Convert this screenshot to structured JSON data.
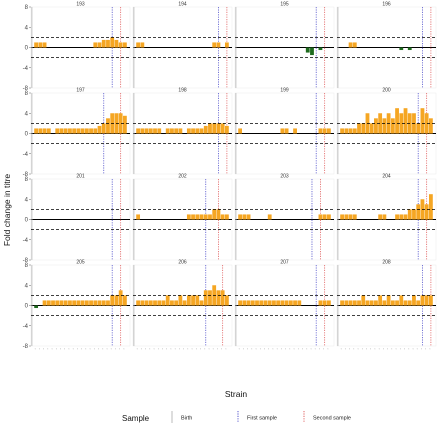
{
  "chart_data": {
    "type": "bar",
    "xlabel": "Strain",
    "ylabel": "Fold change in titre",
    "ylim": [
      -8,
      8
    ],
    "yticks": [
      -8,
      -4,
      0,
      4,
      8
    ],
    "threshold_lines": [
      2,
      -2
    ],
    "colors": {
      "increase": "#F5A623",
      "decrease": "#1E6B1E",
      "birth": "#BBBBBB",
      "first_sample": "#5555CC",
      "second_sample": "#E06060"
    },
    "legend": {
      "title": "Sample",
      "items": [
        {
          "key": "birth",
          "label": "Birth"
        },
        {
          "key": "first_sample",
          "label": "First sample"
        },
        {
          "key": "second_sample",
          "label": "Second sample"
        }
      ]
    },
    "strain_count": 22,
    "panels": [
      {
        "id": "193",
        "values": [
          1,
          1,
          1,
          0,
          0,
          0,
          0,
          0,
          0,
          0,
          0,
          0,
          0,
          0,
          1,
          1,
          1.5,
          1.5,
          2,
          1.5,
          1,
          1
        ],
        "birth": 0,
        "first": 19,
        "second": 21
      },
      {
        "id": "194",
        "values": [
          1,
          1,
          0,
          0,
          0,
          0,
          0,
          0,
          0,
          0,
          0,
          0,
          0,
          0,
          0,
          0,
          0,
          0,
          1,
          1,
          0,
          1
        ],
        "birth": 0,
        "first": 20,
        "second": 22
      },
      {
        "id": "195",
        "values": [
          0,
          0,
          0,
          0,
          0,
          0,
          0,
          0,
          0,
          0,
          0,
          0,
          0,
          0,
          0,
          0,
          -1,
          -1.5,
          0,
          -0.5,
          0,
          0
        ],
        "birth": 0,
        "first": 19,
        "second": 21
      },
      {
        "id": "196",
        "values": [
          0,
          0,
          1,
          1,
          0,
          0,
          0,
          0,
          0,
          0,
          0,
          0,
          0,
          0,
          -0.5,
          0,
          -0.5,
          0,
          0,
          0,
          0,
          0
        ],
        "birth": 0,
        "first": 20,
        "second": 22
      },
      {
        "id": "197",
        "values": [
          1,
          1,
          1,
          1,
          0,
          1,
          1,
          1,
          1,
          1,
          1,
          1,
          1,
          1,
          1,
          1.5,
          2,
          3,
          4,
          4,
          4,
          3.5
        ],
        "birth": 0,
        "first": 17,
        "second": 21
      },
      {
        "id": "198",
        "values": [
          1,
          1,
          1,
          1,
          1,
          1,
          0,
          1,
          1,
          1,
          1,
          0,
          1,
          1,
          1,
          1,
          1.5,
          2,
          2,
          2,
          2,
          1.5
        ],
        "birth": 0,
        "first": 20,
        "second": 22
      },
      {
        "id": "199",
        "values": [
          1,
          0,
          0,
          0,
          0,
          0,
          0,
          0,
          0,
          0,
          1,
          1,
          0,
          1,
          0,
          0,
          0,
          0,
          0,
          1,
          1,
          1
        ],
        "birth": 0,
        "first": 19,
        "second": 21
      },
      {
        "id": "200",
        "values": [
          1,
          1,
          1,
          1,
          2,
          2,
          4,
          2,
          3,
          4,
          3,
          4,
          3,
          5,
          4,
          5,
          4,
          4,
          2,
          5,
          4,
          3
        ],
        "birth": 0,
        "first": 19,
        "second": 21
      },
      {
        "id": "201",
        "values": [
          0,
          0,
          0,
          0,
          0,
          0,
          0,
          0,
          0,
          0,
          0,
          0,
          0,
          0,
          0,
          0,
          0,
          0,
          0,
          0,
          0,
          0
        ],
        "birth": 0,
        "first": 19,
        "second": 21
      },
      {
        "id": "202",
        "values": [
          1,
          0,
          0,
          0,
          0,
          0,
          0,
          0,
          0,
          0,
          0,
          0,
          1,
          1,
          1,
          1,
          1,
          1,
          2,
          2,
          1,
          1
        ],
        "birth": 0,
        "first": 17,
        "second": 20
      },
      {
        "id": "203",
        "values": [
          1,
          1,
          1,
          0,
          0,
          0,
          0,
          1,
          0,
          0,
          0,
          0,
          0,
          0,
          0,
          0,
          0,
          0,
          0,
          1,
          1,
          1
        ],
        "birth": 0,
        "first": 18,
        "second": 20
      },
      {
        "id": "204",
        "values": [
          1,
          1,
          1,
          1,
          0,
          0,
          0,
          0,
          0,
          1,
          1,
          0,
          0,
          1,
          1,
          1,
          2,
          2,
          3,
          4,
          3,
          5
        ],
        "birth": 0,
        "first": 19,
        "second": 21
      },
      {
        "id": "205",
        "values": [
          -0.5,
          0,
          1,
          1,
          1,
          1,
          1,
          1,
          1,
          1,
          1,
          1,
          1,
          1,
          1,
          1,
          1,
          1,
          2,
          2,
          3,
          2
        ],
        "birth": 0,
        "first": 19,
        "second": 21
      },
      {
        "id": "206",
        "values": [
          1,
          1,
          1,
          1,
          1,
          1,
          1,
          2,
          1,
          1,
          2,
          1,
          2,
          2,
          2,
          1,
          3,
          3,
          4,
          3,
          3,
          2
        ],
        "birth": 0,
        "first": 17,
        "second": 21
      },
      {
        "id": "207",
        "values": [
          1,
          1,
          1,
          1,
          1,
          1,
          1,
          1,
          1,
          1,
          1,
          1,
          1,
          1,
          1,
          0,
          0,
          0,
          0,
          1,
          1,
          1
        ],
        "birth": 0,
        "first": 19,
        "second": 21
      },
      {
        "id": "208",
        "values": [
          1,
          1,
          1,
          1,
          1,
          2,
          1,
          1,
          1,
          2,
          1,
          2,
          1,
          1,
          2,
          1,
          1,
          2,
          1,
          2,
          2,
          2
        ],
        "birth": 0,
        "first": 20,
        "second": 22
      }
    ]
  }
}
